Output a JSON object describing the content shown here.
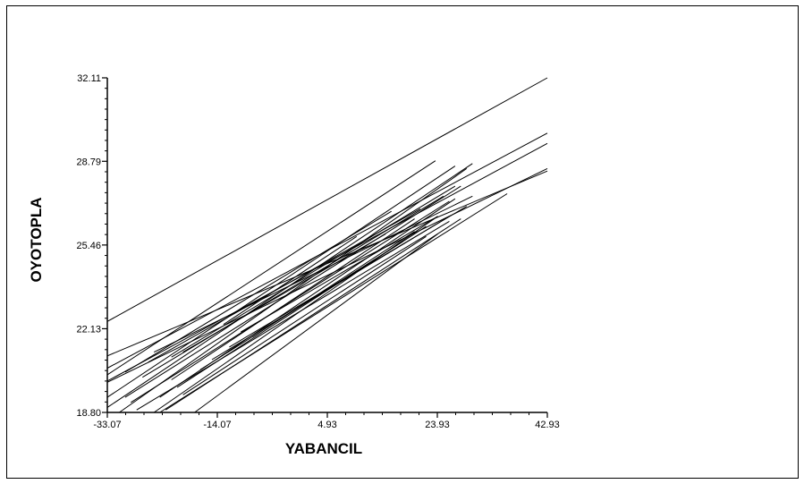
{
  "chart_data": {
    "type": "line",
    "title": "",
    "xlabel": "YABANCIL",
    "ylabel": "OYOTOPLA",
    "xlim": [
      -33.07,
      42.93
    ],
    "ylim": [
      18.8,
      32.11
    ],
    "x_ticks": [
      "-33.07",
      "-14.07",
      "4.93",
      "23.93",
      "42.93"
    ],
    "y_ticks": [
      "18.80",
      "22.13",
      "25.46",
      "28.79",
      "32.11"
    ],
    "grid": false,
    "legend": "none",
    "line_color": "#000000",
    "series": [
      {
        "x": [
          -33.07,
          42.93
        ],
        "y": [
          22.42,
          32.11
        ]
      },
      {
        "x": [
          -33.07,
          42.93
        ],
        "y": [
          20.56,
          29.91
        ]
      },
      {
        "x": [
          -33.07,
          42.93
        ],
        "y": [
          20.05,
          29.5
        ]
      },
      {
        "x": [
          -33.07,
          42.93
        ],
        "y": [
          20.0,
          28.5
        ]
      },
      {
        "x": [
          -33.07,
          42.93
        ],
        "y": [
          21.05,
          28.4
        ]
      },
      {
        "x": [
          -33.07,
          23.6
        ],
        "y": [
          20.3,
          28.81
        ]
      },
      {
        "x": [
          -33.07,
          27.0
        ],
        "y": [
          19.4,
          28.6
        ]
      },
      {
        "x": [
          -33.07,
          30.0
        ],
        "y": [
          19.0,
          28.7
        ]
      },
      {
        "x": [
          -31.0,
          29.0
        ],
        "y": [
          18.8,
          28.5
        ]
      },
      {
        "x": [
          -30.0,
          28.0
        ],
        "y": [
          19.4,
          27.8
        ]
      },
      {
        "x": [
          -29.0,
          26.0
        ],
        "y": [
          19.2,
          27.2
        ]
      },
      {
        "x": [
          -28.0,
          26.0
        ],
        "y": [
          18.9,
          26.4
        ]
      },
      {
        "x": [
          -27.0,
          25.0
        ],
        "y": [
          20.2,
          27.4
        ]
      },
      {
        "x": [
          -25.0,
          30.0
        ],
        "y": [
          21.2,
          27.4
        ]
      },
      {
        "x": [
          -24.0,
          27.0
        ],
        "y": [
          19.4,
          27.3
        ]
      },
      {
        "x": [
          -25.0,
          24.0
        ],
        "y": [
          18.8,
          26.6
        ]
      },
      {
        "x": [
          -23.0,
          28.0
        ],
        "y": [
          18.9,
          26.5
        ]
      },
      {
        "x": [
          -26.0,
          21.0
        ],
        "y": [
          20.8,
          26.9
        ]
      },
      {
        "x": [
          -22.0,
          20.0
        ],
        "y": [
          20.1,
          26.5
        ]
      },
      {
        "x": [
          -20.0,
          22.0
        ],
        "y": [
          19.5,
          25.8
        ]
      },
      {
        "x": [
          -18.0,
          24.0
        ],
        "y": [
          18.8,
          25.9
        ]
      },
      {
        "x": [
          -17.0,
          18.0
        ],
        "y": [
          20.5,
          25.6
        ]
      },
      {
        "x": [
          -15.0,
          26.0
        ],
        "y": [
          20.9,
          26.6
        ]
      },
      {
        "x": [
          -12.0,
          29.0
        ],
        "y": [
          21.4,
          27.0
        ]
      },
      {
        "x": [
          -24.0,
          36.0
        ],
        "y": [
          18.8,
          27.5
        ]
      },
      {
        "x": [
          -10.0,
          24.0
        ],
        "y": [
          22.0,
          26.6
        ]
      },
      {
        "x": [
          -8.0,
          20.0
        ],
        "y": [
          21.8,
          26.0
        ]
      },
      {
        "x": [
          -20.0,
          15.0
        ],
        "y": [
          21.2,
          25.9
        ]
      },
      {
        "x": [
          -22.0,
          27.0
        ],
        "y": [
          21.0,
          27.8
        ]
      },
      {
        "x": [
          -13.0,
          10.0
        ],
        "y": [
          22.3,
          25.8
        ]
      },
      {
        "x": [
          -30.0,
          16.0
        ],
        "y": [
          20.4,
          26.8
        ]
      },
      {
        "x": [
          -21.0,
          22.0
        ],
        "y": [
          19.8,
          26.2
        ]
      }
    ]
  }
}
